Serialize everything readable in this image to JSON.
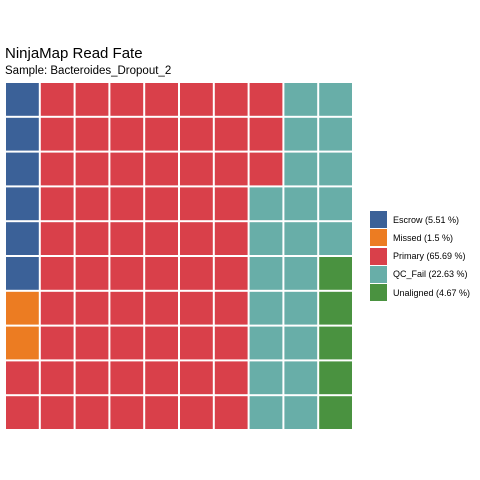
{
  "chart_data": {
    "type": "waffle",
    "title": "NinjaMap Read Fate",
    "subtitle": "Sample: Bacteroides_Dropout_2",
    "grid": {
      "rows": 10,
      "cols": 10
    },
    "categories": [
      "Escrow",
      "Missed",
      "Primary",
      "QC_Fail",
      "Unaligned"
    ],
    "series": [
      {
        "name": "Escrow",
        "percent": 5.51,
        "cells": 6,
        "color": "#3b6198",
        "label": "Escrow (5.51 %)"
      },
      {
        "name": "Missed",
        "percent": 1.5,
        "cells": 2,
        "color": "#ec7c22",
        "label": "Missed (1.5 %)"
      },
      {
        "name": "Primary",
        "percent": 65.69,
        "cells": 65,
        "color": "#d9404a",
        "label": "Primary (65.69 %)"
      },
      {
        "name": "QC_Fail",
        "percent": 22.63,
        "cells": 22,
        "color": "#68aea8",
        "label": "QC_Fail (22.63 %)"
      },
      {
        "name": "Unaligned",
        "percent": 4.67,
        "cells": 5,
        "color": "#4a9240",
        "label": "Unaligned (4.67 %)"
      }
    ],
    "fill_order": "column-major from top-left, sorted by category",
    "legend_position": "right",
    "grid_lines": false
  }
}
